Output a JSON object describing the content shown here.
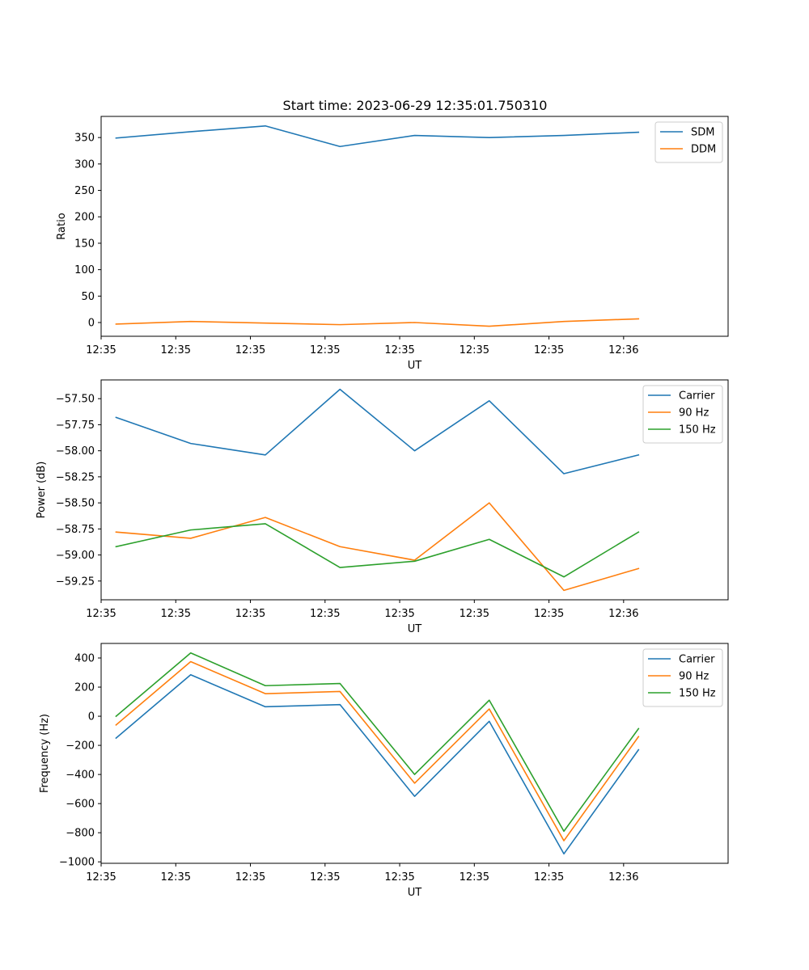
{
  "figure_title": "Start time: 2023-06-29 12:35:01.750310",
  "colors": {
    "blue": "#1f77b4",
    "orange": "#ff7f0e",
    "green": "#2ca02c"
  },
  "chart_data": [
    {
      "type": "line",
      "xlabel": "UT",
      "ylabel": "Ratio",
      "x_tick_labels": [
        "12:35",
        "12:35",
        "12:35",
        "12:35",
        "12:35",
        "12:35",
        "12:35",
        "12:36"
      ],
      "x": [
        1,
        2,
        3,
        4,
        5,
        6,
        7,
        8
      ],
      "xlim": [
        0.8,
        9.2
      ],
      "ylim": [
        -26,
        390
      ],
      "y_ticks": [
        0,
        50,
        100,
        150,
        200,
        250,
        300,
        350
      ],
      "legend_loc": "upper right",
      "series": [
        {
          "name": "SDM",
          "color": "#1f77b4",
          "values": [
            349,
            361,
            372,
            333,
            354,
            350,
            354,
            360
          ]
        },
        {
          "name": "DDM",
          "color": "#ff7f0e",
          "values": [
            -3,
            2,
            -1,
            -4,
            0,
            -7,
            2,
            7
          ]
        }
      ]
    },
    {
      "type": "line",
      "xlabel": "UT",
      "ylabel": "Power (dB)",
      "x_tick_labels": [
        "12:35",
        "12:35",
        "12:35",
        "12:35",
        "12:35",
        "12:35",
        "12:35",
        "12:36"
      ],
      "x": [
        1,
        2,
        3,
        4,
        5,
        6,
        7,
        8
      ],
      "xlim": [
        0.8,
        9.2
      ],
      "ylim": [
        -59.43,
        -57.32
      ],
      "y_ticks": [
        -57.5,
        -57.75,
        -58.0,
        -58.25,
        -58.5,
        -58.75,
        -59.0,
        -59.25
      ],
      "y_tick_labels": [
        "−57.50",
        "−57.75",
        "−58.00",
        "−58.25",
        "−58.50",
        "−58.75",
        "−59.00",
        "−59.25"
      ],
      "legend_loc": "upper right",
      "series": [
        {
          "name": "Carrier",
          "color": "#1f77b4",
          "values": [
            -57.68,
            -57.93,
            -58.04,
            -57.41,
            -58.0,
            -57.52,
            -58.22,
            -58.04
          ]
        },
        {
          "name": "90 Hz",
          "color": "#ff7f0e",
          "values": [
            -58.78,
            -58.84,
            -58.64,
            -58.92,
            -59.05,
            -58.5,
            -59.34,
            -59.13
          ]
        },
        {
          "name": "150 Hz",
          "color": "#2ca02c",
          "values": [
            -58.92,
            -58.76,
            -58.7,
            -59.12,
            -59.06,
            -58.85,
            -59.21,
            -58.78
          ]
        }
      ]
    },
    {
      "type": "line",
      "xlabel": "UT",
      "ylabel": "Frequency (Hz)",
      "x_tick_labels": [
        "12:35",
        "12:35",
        "12:35",
        "12:35",
        "12:35",
        "12:35",
        "12:35",
        "12:36"
      ],
      "x": [
        1,
        2,
        3,
        4,
        5,
        6,
        7,
        8
      ],
      "xlim": [
        0.8,
        9.2
      ],
      "ylim": [
        -1010,
        500
      ],
      "y_ticks": [
        400,
        200,
        0,
        -200,
        -400,
        -600,
        -800,
        -1000
      ],
      "y_tick_labels": [
        "400",
        "200",
        "0",
        "−200",
        "−400",
        "−600",
        "−800",
        "−1000"
      ],
      "legend_loc": "upper right",
      "series": [
        {
          "name": "Carrier",
          "color": "#1f77b4",
          "values": [
            -150,
            285,
            65,
            80,
            -550,
            -35,
            -945,
            -230
          ]
        },
        {
          "name": "90 Hz",
          "color": "#ff7f0e",
          "values": [
            -60,
            375,
            155,
            170,
            -460,
            50,
            -855,
            -140
          ]
        },
        {
          "name": "150 Hz",
          "color": "#2ca02c",
          "values": [
            0,
            435,
            210,
            225,
            -400,
            110,
            -790,
            -85
          ]
        }
      ]
    }
  ]
}
